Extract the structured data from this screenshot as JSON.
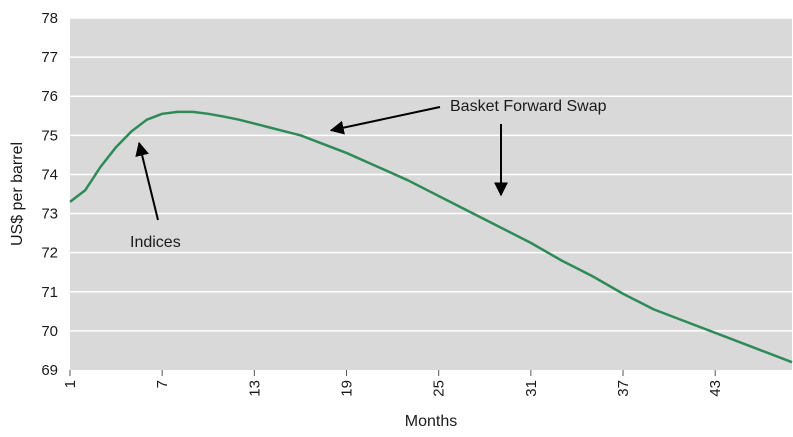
{
  "chart_data": {
    "type": "line",
    "title": "",
    "xlabel": "Months",
    "ylabel": "US$ per barrel",
    "xlim": [
      1,
      48
    ],
    "ylim": [
      69,
      78
    ],
    "x_ticks": [
      1,
      7,
      13,
      19,
      25,
      31,
      37,
      43
    ],
    "y_ticks": [
      69,
      70,
      71,
      72,
      73,
      74,
      75,
      76,
      77,
      78
    ],
    "grid": "horizontal",
    "background_color": "#d9d9d9",
    "gridline_color": "#ffffff",
    "series": [
      {
        "color": "#2e8b57",
        "x": [
          1,
          2,
          3,
          4,
          5,
          6,
          7,
          8,
          9,
          10,
          11,
          12,
          13,
          14,
          15,
          16,
          17,
          19,
          21,
          23,
          25,
          27,
          29,
          31,
          33,
          35,
          37,
          39,
          41,
          43,
          45,
          48
        ],
        "y": [
          73.3,
          73.6,
          74.2,
          74.7,
          75.1,
          75.4,
          75.55,
          75.6,
          75.6,
          75.55,
          75.48,
          75.4,
          75.3,
          75.2,
          75.1,
          75.0,
          74.85,
          74.55,
          74.2,
          73.85,
          73.45,
          73.05,
          72.65,
          72.25,
          71.8,
          71.4,
          70.95,
          70.55,
          70.25,
          69.95,
          69.65,
          69.2
        ]
      }
    ],
    "annotations": [
      {
        "text": "Indices",
        "target": {
          "x": 5.5,
          "y": 74.8
        }
      },
      {
        "text": "Basket Forward Swap",
        "target": {
          "x": 18.0,
          "y": 75.0
        }
      },
      {
        "text": "",
        "target": {
          "x": 28.8,
          "y": 73.5
        }
      }
    ]
  }
}
